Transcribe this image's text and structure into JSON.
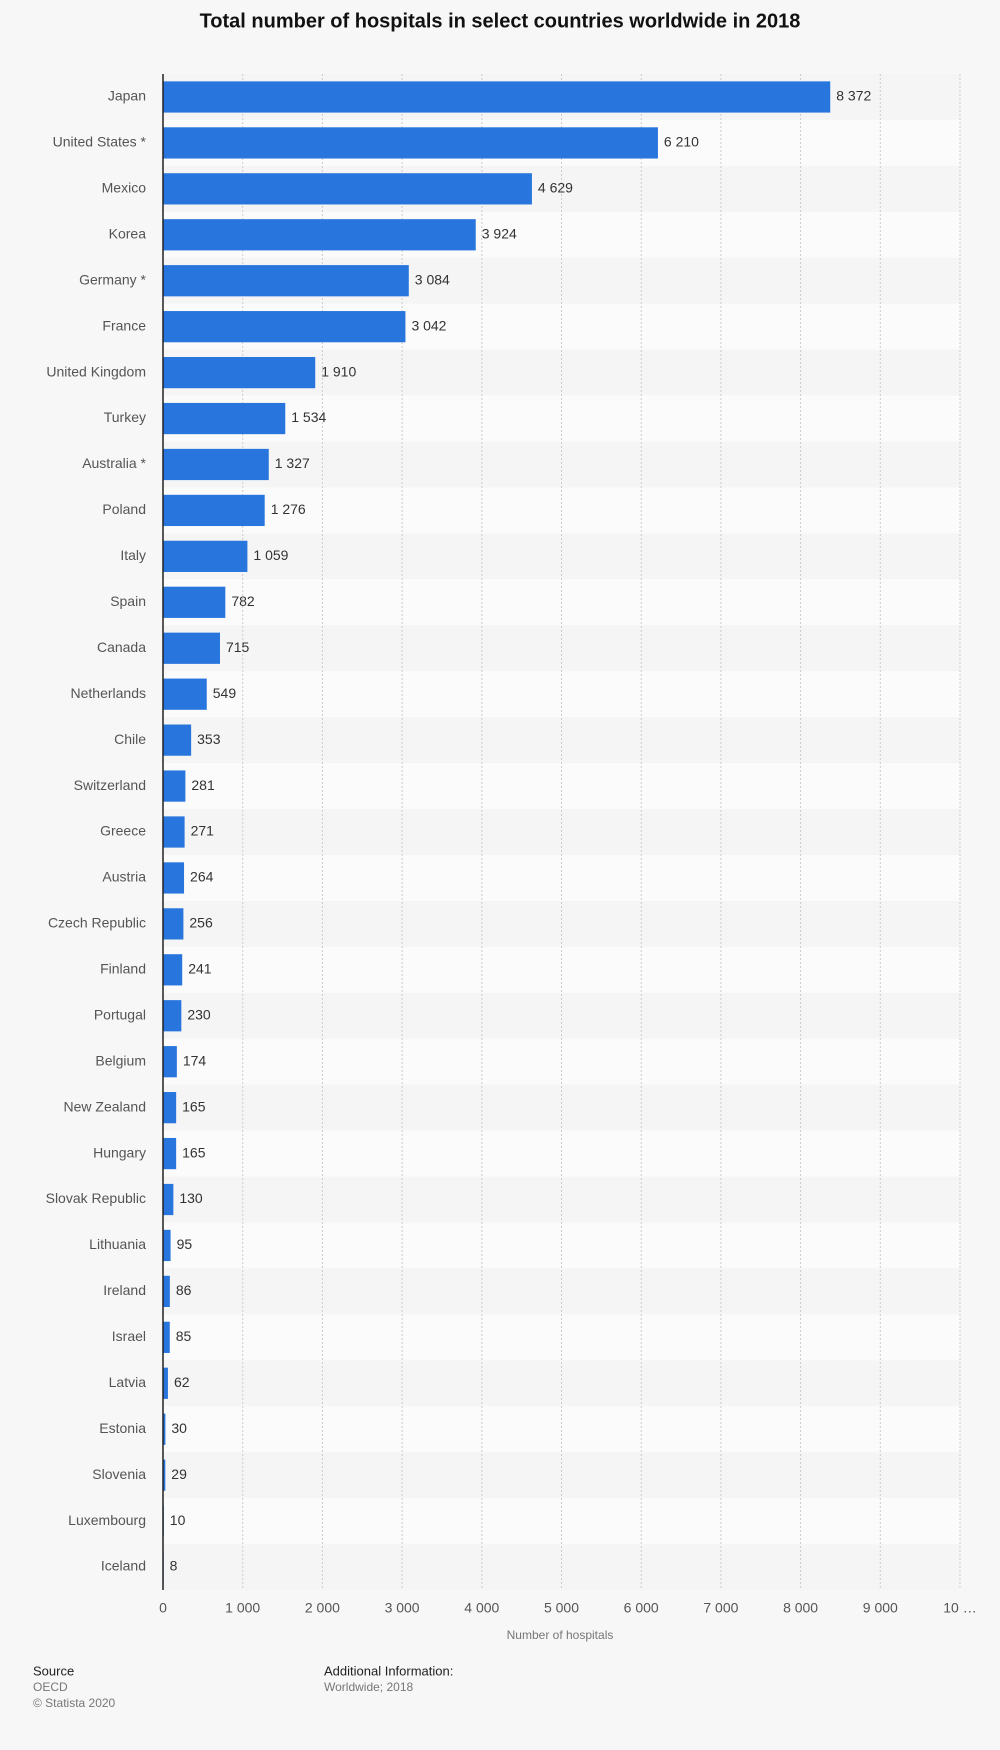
{
  "chart_data": {
    "type": "bar",
    "orientation": "horizontal",
    "title": "Total number of hospitals in select countries worldwide in 2018",
    "categories": [
      "Japan",
      "United States *",
      "Mexico",
      "Korea",
      "Germany *",
      "France",
      "United Kingdom",
      "Turkey",
      "Australia *",
      "Poland",
      "Italy",
      "Spain",
      "Canada",
      "Netherlands",
      "Chile",
      "Switzerland",
      "Greece",
      "Austria",
      "Czech Republic",
      "Finland",
      "Portugal",
      "Belgium",
      "New Zealand",
      "Hungary",
      "Slovak Republic",
      "Lithuania",
      "Ireland",
      "Israel",
      "Latvia",
      "Estonia",
      "Slovenia",
      "Luxembourg",
      "Iceland"
    ],
    "values": [
      8372,
      6210,
      4629,
      3924,
      3084,
      3042,
      1910,
      1534,
      1327,
      1276,
      1059,
      782,
      715,
      549,
      353,
      281,
      271,
      264,
      256,
      241,
      230,
      174,
      165,
      165,
      130,
      95,
      86,
      85,
      62,
      30,
      29,
      10,
      8
    ],
    "value_labels": [
      "8 372",
      "6 210",
      "4 629",
      "3 924",
      "3 084",
      "3 042",
      "1 910",
      "1 534",
      "1 327",
      "1 276",
      "1 059",
      "782",
      "715",
      "549",
      "353",
      "281",
      "271",
      "264",
      "256",
      "241",
      "230",
      "174",
      "165",
      "165",
      "130",
      "95",
      "86",
      "85",
      "62",
      "30",
      "29",
      "10",
      "8"
    ],
    "color": "#2876dd",
    "xlim": [
      0,
      10000
    ],
    "xticks": [
      0,
      {
        "value": 1000,
        "label": "1 000"
      },
      {
        "value": 2000,
        "label": "2 000"
      },
      {
        "value": 3000,
        "label": "3 000"
      },
      {
        "value": 4000,
        "label": "4 000"
      },
      {
        "value": 5000,
        "label": "5 000"
      },
      {
        "value": 6000,
        "label": "6 000"
      },
      {
        "value": 7000,
        "label": "7 000"
      },
      {
        "value": 8000,
        "label": "8 000"
      },
      {
        "value": 9000,
        "label": "9 000"
      },
      {
        "value": 10000,
        "label": "10 …"
      }
    ],
    "x_label": "Number of hospitals",
    "grid": true,
    "source_label": "Source",
    "source": "OECD",
    "copyright": "© Statista 2020",
    "additional_info_label": "Additional Information:",
    "additional_info": "Worldwide; 2018"
  }
}
